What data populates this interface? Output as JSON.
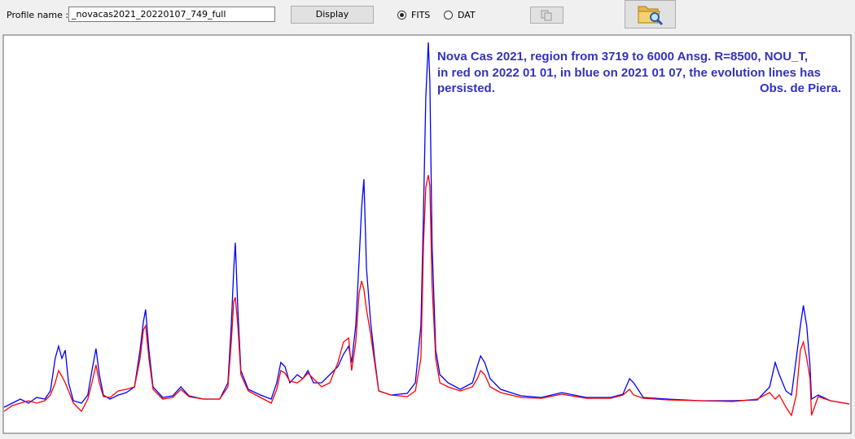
{
  "toolbar": {
    "profile_label": "Profile name :",
    "profile_value": "_novacas2021_20220107_749_full",
    "display_button": "Display",
    "radio_options": [
      {
        "label": "FITS",
        "checked": true
      },
      {
        "label": "DAT",
        "checked": false
      }
    ]
  },
  "chart_data": {
    "type": "line",
    "annotation": [
      "Nova Cas 2021, region from 3719 to 6000 Ansg. R=8500,  NOU_T,",
      "in red on 2022 01 01, in blue on 2021 01 07, the evolution lines has",
      "persisted.",
      "Obs. de Piera."
    ],
    "xlim": [
      3719,
      6000
    ],
    "ylim": [
      0,
      489
    ],
    "x": [
      3719,
      3741,
      3763,
      3785,
      3807,
      3829,
      3844,
      3857,
      3866,
      3875,
      3884,
      3893,
      3906,
      3928,
      3945,
      3956,
      3967,
      3976,
      3987,
      4005,
      4027,
      4049,
      4071,
      4086,
      4095,
      4101,
      4110,
      4121,
      4147,
      4174,
      4196,
      4218,
      4257,
      4301,
      4323,
      4332,
      4339,
      4343,
      4350,
      4358,
      4378,
      4411,
      4440,
      4455,
      4466,
      4477,
      4490,
      4510,
      4525,
      4539,
      4554,
      4576,
      4598,
      4620,
      4635,
      4649,
      4657,
      4668,
      4677,
      4684,
      4690,
      4697,
      4708,
      4719,
      4730,
      4763,
      4807,
      4829,
      4844,
      4851,
      4857,
      4864,
      4868,
      4874,
      4884,
      4895,
      4917,
      4950,
      4983,
      4996,
      5005,
      5016,
      5031,
      5059,
      5114,
      5169,
      5224,
      5290,
      5356,
      5389,
      5407,
      5418,
      5444,
      5510,
      5598,
      5686,
      5752,
      5785,
      5800,
      5811,
      5829,
      5844,
      5857,
      5868,
      5876,
      5885,
      5894,
      5898,
      5916,
      5949,
      6000
    ],
    "series": [
      {
        "color": "#0000ff",
        "values": [
          32,
          37,
          42,
          37,
          44,
          42,
          52,
          92,
          107,
          92,
          102,
          62,
          40,
          37,
          47,
          77,
          104,
          72,
          47,
          42,
          47,
          50,
          57,
          102,
          137,
          152,
          102,
          57,
          44,
          46,
          57,
          46,
          42,
          42,
          62,
          132,
          202,
          234,
          152,
          77,
          54,
          47,
          42,
          62,
          87,
          82,
          62,
          72,
          67,
          77,
          62,
          62,
          72,
          82,
          97,
          107,
          87,
          132,
          212,
          277,
          312,
          202,
          137,
          92,
          52,
          47,
          49,
          62,
          132,
          272,
          412,
          480,
          432,
          232,
          102,
          72,
          62,
          54,
          62,
          82,
          95,
          87,
          67,
          54,
          46,
          44,
          50,
          44,
          44,
          48,
          67,
          62,
          44,
          42,
          40,
          40,
          41,
          57,
          87,
          72,
          52,
          47,
          92,
          132,
          157,
          132,
          82,
          42,
          47,
          40,
          36
        ]
      },
      {
        "color": "#ff0000",
        "values": [
          27,
          34,
          37,
          40,
          37,
          40,
          47,
          62,
          77,
          70,
          62,
          52,
          37,
          27,
          42,
          62,
          84,
          62,
          45,
          44,
          52,
          54,
          57,
          92,
          127,
          132,
          92,
          54,
          42,
          44,
          54,
          45,
          42,
          42,
          57,
          112,
          162,
          167,
          132,
          72,
          52,
          44,
          37,
          54,
          77,
          74,
          64,
          62,
          67,
          74,
          67,
          57,
          62,
          87,
          112,
          117,
          77,
          112,
          172,
          187,
          177,
          152,
          122,
          87,
          52,
          47,
          45,
          52,
          92,
          232,
          302,
          317,
          304,
          182,
          92,
          62,
          57,
          52,
          57,
          67,
          77,
          72,
          57,
          50,
          44,
          43,
          48,
          43,
          43,
          47,
          54,
          47,
          43,
          41,
          40,
          39,
          42,
          50,
          42,
          47,
          32,
          22,
          47,
          102,
          112,
          92,
          67,
          22,
          45,
          40,
          36
        ]
      }
    ]
  }
}
